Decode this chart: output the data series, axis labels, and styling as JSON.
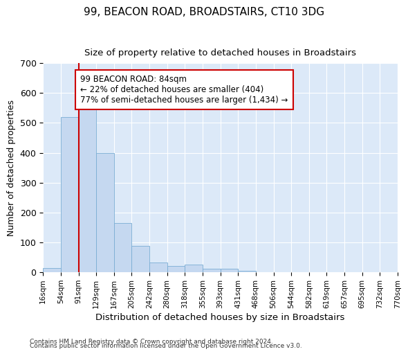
{
  "title1": "99, BEACON ROAD, BROADSTAIRS, CT10 3DG",
  "title2": "Size of property relative to detached houses in Broadstairs",
  "xlabel": "Distribution of detached houses by size in Broadstairs",
  "ylabel": "Number of detached properties",
  "bar_values": [
    15,
    520,
    580,
    400,
    165,
    88,
    32,
    22,
    25,
    12,
    12,
    5,
    0,
    0,
    0,
    0,
    0,
    0,
    0,
    0
  ],
  "bin_labels": [
    "16sqm",
    "54sqm",
    "91sqm",
    "129sqm",
    "167sqm",
    "205sqm",
    "242sqm",
    "280sqm",
    "318sqm",
    "355sqm",
    "393sqm",
    "431sqm",
    "468sqm",
    "506sqm",
    "544sqm",
    "582sqm",
    "619sqm",
    "657sqm",
    "695sqm",
    "732sqm",
    "770sqm"
  ],
  "bar_color": "#c5d8f0",
  "bar_edge_color": "#7aadd4",
  "plot_bg_color": "#dce9f8",
  "fig_bg_color": "#ffffff",
  "grid_color": "#ffffff",
  "property_line_x": 2,
  "property_line_color": "#cc0000",
  "annotation_line1": "99 BEACON ROAD: 84sqm",
  "annotation_line2": "← 22% of detached houses are smaller (404)",
  "annotation_line3": "77% of semi-detached houses are larger (1,434) →",
  "annotation_box_color": "white",
  "annotation_box_edge": "#cc0000",
  "ylim": [
    0,
    700
  ],
  "yticks": [
    0,
    100,
    200,
    300,
    400,
    500,
    600,
    700
  ],
  "footnote1": "Contains HM Land Registry data © Crown copyright and database right 2024.",
  "footnote2": "Contains public sector information licensed under the Open Government Licence v3.0."
}
